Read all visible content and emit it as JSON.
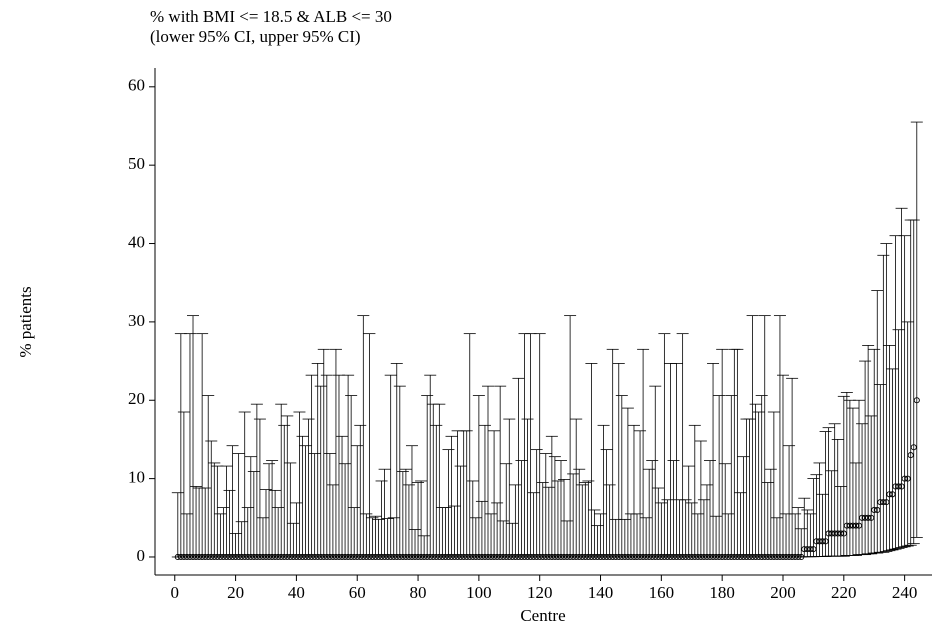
{
  "chart_data": {
    "type": "errorbar",
    "title": "% with BMI <= 18.5 & ALB <= 30",
    "subtitle": "(lower 95% CI, upper 95% CI)",
    "x_label": "Centre",
    "y_label": "% patients",
    "color": "#000000",
    "xlim": [
      -6.5,
      249
    ],
    "ylim": [
      -2.3,
      62.4
    ],
    "xticks": [
      0,
      20,
      40,
      60,
      80,
      100,
      120,
      140,
      160,
      180,
      200,
      220,
      240
    ],
    "yticks": [
      0,
      10,
      20,
      30,
      40,
      50,
      60
    ],
    "x": [
      1,
      2,
      3,
      4,
      5,
      6,
      7,
      8,
      9,
      10,
      11,
      12,
      13,
      14,
      15,
      16,
      17,
      18,
      19,
      20,
      21,
      22,
      23,
      24,
      25,
      26,
      27,
      28,
      29,
      30,
      31,
      32,
      33,
      34,
      35,
      36,
      37,
      38,
      39,
      40,
      41,
      42,
      43,
      44,
      45,
      46,
      47,
      48,
      49,
      50,
      51,
      52,
      53,
      54,
      55,
      56,
      57,
      58,
      59,
      60,
      61,
      62,
      63,
      64,
      65,
      66,
      67,
      68,
      69,
      70,
      71,
      72,
      73,
      74,
      75,
      76,
      77,
      78,
      79,
      80,
      81,
      82,
      83,
      84,
      85,
      86,
      87,
      88,
      89,
      90,
      91,
      92,
      93,
      94,
      95,
      96,
      97,
      98,
      99,
      100,
      101,
      102,
      103,
      104,
      105,
      106,
      107,
      108,
      109,
      110,
      111,
      112,
      113,
      114,
      115,
      116,
      117,
      118,
      119,
      120,
      121,
      122,
      123,
      124,
      125,
      126,
      127,
      128,
      129,
      130,
      131,
      132,
      133,
      134,
      135,
      136,
      137,
      138,
      139,
      140,
      141,
      142,
      143,
      144,
      145,
      146,
      147,
      148,
      149,
      150,
      151,
      152,
      153,
      154,
      155,
      156,
      157,
      158,
      159,
      160,
      161,
      162,
      163,
      164,
      165,
      166,
      167,
      168,
      169,
      170,
      171,
      172,
      173,
      174,
      175,
      176,
      177,
      178,
      179,
      180,
      181,
      182,
      183,
      184,
      185,
      186,
      187,
      188,
      189,
      190,
      191,
      192,
      193,
      194,
      195,
      196,
      197,
      198,
      199,
      200,
      201,
      202,
      203,
      204,
      205,
      206,
      207,
      208,
      209,
      210,
      211,
      212,
      213,
      214,
      215,
      216,
      217,
      218,
      219,
      220,
      221,
      222,
      223,
      224,
      225,
      226,
      227,
      228,
      229,
      230,
      231,
      232,
      233,
      234,
      235,
      236,
      237,
      238,
      239,
      240,
      241,
      242,
      243,
      244
    ],
    "values": [
      0,
      0,
      0,
      0,
      0,
      0,
      0,
      0,
      0,
      0,
      0,
      0,
      0,
      0,
      0,
      0,
      0,
      0,
      0,
      0,
      0,
      0,
      0,
      0,
      0,
      0,
      0,
      0,
      0,
      0,
      0,
      0,
      0,
      0,
      0,
      0,
      0,
      0,
      0,
      0,
      0,
      0,
      0,
      0,
      0,
      0,
      0,
      0,
      0,
      0,
      0,
      0,
      0,
      0,
      0,
      0,
      0,
      0,
      0,
      0,
      0,
      0,
      0,
      0,
      0,
      0,
      0,
      0,
      0,
      0,
      0,
      0,
      0,
      0,
      0,
      0,
      0,
      0,
      0,
      0,
      0,
      0,
      0,
      0,
      0,
      0,
      0,
      0,
      0,
      0,
      0,
      0,
      0,
      0,
      0,
      0,
      0,
      0,
      0,
      0,
      0,
      0,
      0,
      0,
      0,
      0,
      0,
      0,
      0,
      0,
      0,
      0,
      0,
      0,
      0,
      0,
      0,
      0,
      0,
      0,
      0,
      0,
      0,
      0,
      0,
      0,
      0,
      0,
      0,
      0,
      0,
      0,
      0,
      0,
      0,
      0,
      0,
      0,
      0,
      0,
      0,
      0,
      0,
      0,
      0,
      0,
      0,
      0,
      0,
      0,
      0,
      0,
      0,
      0,
      0,
      0,
      0,
      0,
      0,
      0,
      0,
      0,
      0,
      0,
      0,
      0,
      0,
      0,
      0,
      0,
      0,
      0,
      0,
      0,
      0,
      0,
      0,
      0,
      0,
      0,
      0,
      0,
      0,
      0,
      0,
      0,
      0,
      0,
      0,
      0,
      0,
      0,
      0,
      0,
      0,
      0,
      0,
      0,
      0,
      0,
      0,
      0,
      0,
      0,
      0,
      0,
      1,
      1,
      1,
      1,
      2,
      2,
      2,
      2,
      3,
      3,
      3,
      3,
      3,
      3,
      4,
      4,
      4,
      4,
      4,
      5,
      5,
      5,
      5,
      6,
      6,
      7,
      7,
      7,
      8,
      8,
      9,
      9,
      9,
      10,
      10,
      13,
      14,
      20
    ],
    "lower": [
      0,
      0,
      0,
      0,
      0,
      0,
      0,
      0,
      0,
      0,
      0,
      0,
      0,
      0,
      0,
      0,
      0,
      0,
      0,
      0,
      0,
      0,
      0,
      0,
      0,
      0,
      0,
      0,
      0,
      0,
      0,
      0,
      0,
      0,
      0,
      0,
      0,
      0,
      0,
      0,
      0,
      0,
      0,
      0,
      0,
      0,
      0,
      0,
      0,
      0,
      0,
      0,
      0,
      0,
      0,
      0,
      0,
      0,
      0,
      0,
      0,
      0,
      0,
      0,
      0,
      0,
      0,
      0,
      0,
      0,
      0,
      0,
      0,
      0,
      0,
      0,
      0,
      0,
      0,
      0,
      0,
      0,
      0,
      0,
      0,
      0,
      0,
      0,
      0,
      0,
      0,
      0,
      0,
      0,
      0,
      0,
      0,
      0,
      0,
      0,
      0,
      0,
      0,
      0,
      0,
      0,
      0,
      0,
      0,
      0,
      0,
      0,
      0,
      0,
      0,
      0,
      0,
      0,
      0,
      0,
      0,
      0,
      0,
      0,
      0,
      0,
      0,
      0,
      0,
      0,
      0,
      0,
      0,
      0,
      0,
      0,
      0,
      0,
      0,
      0,
      0,
      0,
      0,
      0,
      0,
      0,
      0,
      0,
      0,
      0,
      0,
      0,
      0,
      0,
      0,
      0,
      0,
      0,
      0,
      0,
      0,
      0,
      0,
      0,
      0,
      0,
      0,
      0,
      0,
      0,
      0,
      0,
      0,
      0,
      0,
      0,
      0,
      0,
      0,
      0,
      0,
      0,
      0,
      0,
      0,
      0,
      0,
      0,
      0,
      0,
      0,
      0,
      0,
      0,
      0,
      0,
      0,
      0,
      0,
      0,
      0,
      0,
      0,
      0,
      0,
      0,
      0.03,
      0.03,
      0.03,
      0.03,
      0.05,
      0.05,
      0.06,
      0.06,
      0.1,
      0.1,
      0.1,
      0.1,
      0.1,
      0.1,
      0.2,
      0.2,
      0.2,
      0.2,
      0.3,
      0.3,
      0.3,
      0.4,
      0.4,
      0.5,
      0.5,
      0.6,
      0.6,
      0.7,
      0.8,
      0.9,
      1.0,
      1.1,
      1.2,
      1.3,
      1.4,
      1.5,
      1.7,
      2.5
    ],
    "upper": [
      8.2,
      28.5,
      18.5,
      5.5,
      28.5,
      30.8,
      9.0,
      8.8,
      28.5,
      8.8,
      20.6,
      14.8,
      12.0,
      11.6,
      5.5,
      6.3,
      11.6,
      8.5,
      14.2,
      3.0,
      13.2,
      4.5,
      18.5,
      6.3,
      12.8,
      10.9,
      19.5,
      17.6,
      5.0,
      8.6,
      11.9,
      12.3,
      8.5,
      6.3,
      19.5,
      16.8,
      18.0,
      12.0,
      4.3,
      6.9,
      18.5,
      15.4,
      14.2,
      17.6,
      23.2,
      13.2,
      24.7,
      21.8,
      26.5,
      23.2,
      13.2,
      9.2,
      26.5,
      23.2,
      15.4,
      11.9,
      23.2,
      20.6,
      6.3,
      14.2,
      16.8,
      30.8,
      5.5,
      28.5,
      5.0,
      5.2,
      4.8,
      9.7,
      11.2,
      4.9,
      23.2,
      5.0,
      24.7,
      21.8,
      10.9,
      11.2,
      9.2,
      14.2,
      3.5,
      9.5,
      9.7,
      2.7,
      20.6,
      23.2,
      19.5,
      16.8,
      19.5,
      6.3,
      6.3,
      13.7,
      15.4,
      6.5,
      16.1,
      11.6,
      16.1,
      16.1,
      28.5,
      9.7,
      5.0,
      20.6,
      7.1,
      16.8,
      21.8,
      5.5,
      16.1,
      6.9,
      21.8,
      4.6,
      11.9,
      17.6,
      4.3,
      9.2,
      22.8,
      12.3,
      28.5,
      17.6,
      28.5,
      8.2,
      13.7,
      28.5,
      9.5,
      13.2,
      8.9,
      15.4,
      12.8,
      9.7,
      12.3,
      9.9,
      4.6,
      30.8,
      10.6,
      17.6,
      11.2,
      9.2,
      9.5,
      9.7,
      24.7,
      6.0,
      4.0,
      5.5,
      16.8,
      13.7,
      9.2,
      26.5,
      4.8,
      24.7,
      20.6,
      4.8,
      19.0,
      5.5,
      16.8,
      5.5,
      16.1,
      26.5,
      5.0,
      11.2,
      12.3,
      21.8,
      8.8,
      6.9,
      28.5,
      7.3,
      24.7,
      12.3,
      24.7,
      7.3,
      28.5,
      7.3,
      11.6,
      6.9,
      16.8,
      5.5,
      14.8,
      7.3,
      9.2,
      12.3,
      24.7,
      5.2,
      20.6,
      26.5,
      11.9,
      5.5,
      20.6,
      26.5,
      26.5,
      8.2,
      12.8,
      17.6,
      17.6,
      30.8,
      19.5,
      18.5,
      20.6,
      30.8,
      9.5,
      11.2,
      18.5,
      5.0,
      30.8,
      23.2,
      5.5,
      14.2,
      22.8,
      5.5,
      6.3,
      3.6,
      7.5,
      6,
      5.5,
      10,
      10.5,
      12,
      8,
      16,
      16.5,
      11,
      17,
      15,
      9,
      20.5,
      21,
      20,
      19,
      12,
      20,
      17,
      25,
      27,
      18,
      26.5,
      34,
      22,
      38.5,
      40,
      27,
      24,
      41,
      29,
      44.5,
      41,
      30,
      43,
      43,
      55.5
    ]
  }
}
